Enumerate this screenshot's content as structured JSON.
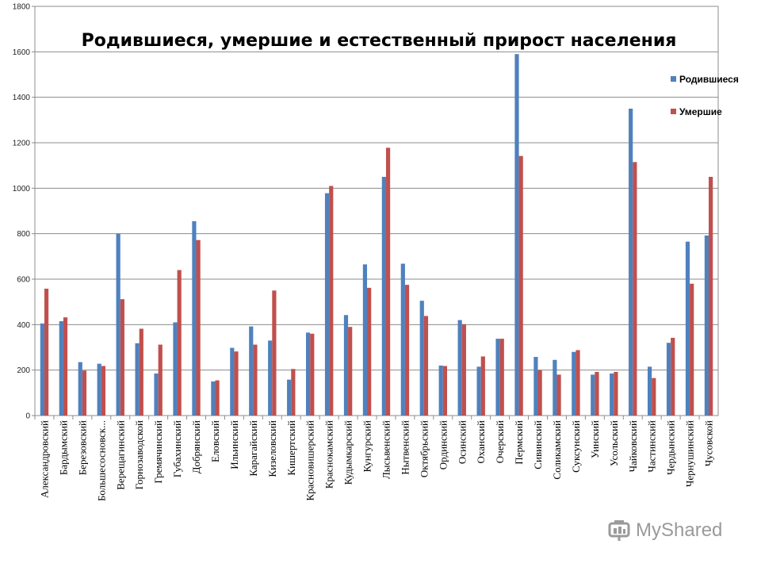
{
  "chart_data": {
    "type": "bar",
    "title": "Родившиеся, умершие и естественный прирост населения",
    "ylim": [
      0,
      1800
    ],
    "yticks": [
      0,
      200,
      400,
      600,
      800,
      1000,
      1200,
      1400,
      1600,
      1800
    ],
    "grid": true,
    "legend_position": "top-right",
    "categories": [
      "Александровский",
      "Бардымский",
      "Березовский",
      "Большесосновск...",
      "Верещагинский",
      "Горнозаводской",
      "Гремячинский",
      "Губахинский",
      "Добрянский",
      "Еловский",
      "Ильинский",
      "Карагайский",
      "Кизеловский",
      "Кишертский",
      "Красновишерский",
      "Краснокамский",
      "Кудымкарский",
      "Кунгурский",
      "Лысьвенский",
      "Нытвенский",
      "Октябрьский",
      "Ординский",
      "Осинский",
      "Оханский",
      "Очерский",
      "Пермский",
      "Сивинский",
      "Соликамский",
      "Суксунский",
      "Уинский",
      "Усольский",
      "Чайковский",
      "Частинский",
      "Чердынский",
      "Чернушинский",
      "Чусовской"
    ],
    "series": [
      {
        "name": "Родившиеся",
        "color": "#4f81bd",
        "values": [
          405,
          415,
          235,
          228,
          800,
          318,
          185,
          410,
          855,
          150,
          298,
          392,
          330,
          158,
          365,
          978,
          442,
          665,
          1050,
          668,
          505,
          220,
          420,
          215,
          338,
          1590,
          258,
          245,
          280,
          180,
          185,
          1350,
          215,
          320,
          765,
          792
        ]
      },
      {
        "name": "Умершие",
        "color": "#c0504d",
        "values": [
          558,
          432,
          198,
          218,
          512,
          382,
          312,
          640,
          772,
          155,
          282,
          312,
          550,
          205,
          360,
          1010,
          390,
          562,
          1178,
          575,
          438,
          218,
          402,
          260,
          338,
          1142,
          200,
          180,
          288,
          192,
          192,
          1115,
          165,
          342,
          580,
          1050
        ]
      }
    ]
  },
  "watermark": {
    "text": "MyShared"
  }
}
